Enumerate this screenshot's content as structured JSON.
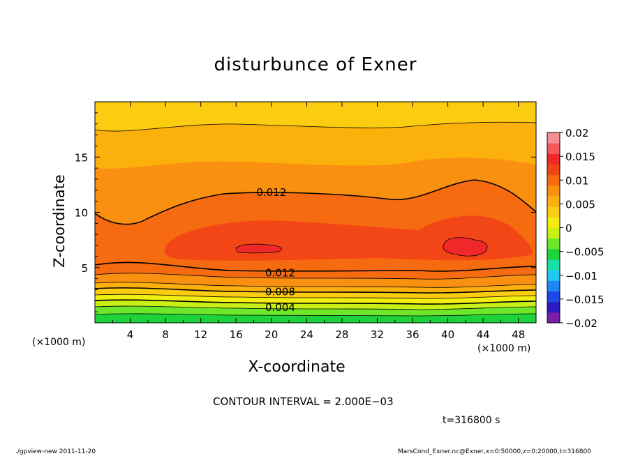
{
  "title": "disturbunce of Exner",
  "chart_data": {
    "type": "heatmap",
    "title": "disturbunce of Exner",
    "xlabel": "X-coordinate",
    "ylabel": "Z-coordinate",
    "x_unit_label": "(×1000 m)",
    "xlim": [
      0,
      50
    ],
    "ylim": [
      0,
      20
    ],
    "x_ticks": [
      4,
      8,
      12,
      16,
      20,
      24,
      28,
      32,
      36,
      40,
      44,
      48
    ],
    "y_ticks": [
      5,
      10,
      15
    ],
    "colorbar": {
      "range": [
        -0.02,
        0.02
      ],
      "tick_labels": [
        "0.02",
        "0.015",
        "0.01",
        "0.005",
        "0",
        "−0.005",
        "−0.01",
        "−0.015",
        "−0.02"
      ],
      "colors": [
        "#7a1fa8",
        "#2b1bc0",
        "#1f48e6",
        "#1e86f0",
        "#22c8f2",
        "#16e0a8",
        "#1ed23a",
        "#6ee62a",
        "#c8f015",
        "#f2ee10",
        "#fbcc10",
        "#fbb00c",
        "#f99010",
        "#f66a10",
        "#f24616",
        "#f0282a",
        "#f55a5a",
        "#f78e96"
      ]
    },
    "contour_interval_text": "CONTOUR INTERVAL = 2.000E−03",
    "contour_labels": [
      {
        "text": "0.012",
        "x": 20,
        "z": 11.8
      },
      {
        "text": "0.012",
        "x": 21,
        "z": 4.5
      },
      {
        "text": "0.008",
        "x": 21,
        "z": 2.8
      },
      {
        "text": "0.004",
        "x": 21,
        "z": 1.4
      }
    ],
    "field_description_points": [
      {
        "z": 0,
        "value": -0.001
      },
      {
        "z": 1,
        "value": 0.002
      },
      {
        "z": 2,
        "value": 0.005
      },
      {
        "z": 3,
        "value": 0.008
      },
      {
        "z": 4,
        "value": 0.011
      },
      {
        "z": 5,
        "value": 0.0125
      },
      {
        "z": 7,
        "value": 0.016
      },
      {
        "z": 10,
        "value": 0.014
      },
      {
        "z": 12,
        "value": 0.012
      },
      {
        "z": 15,
        "value": 0.011
      },
      {
        "z": 17.5,
        "value": 0.01
      },
      {
        "z": 19,
        "value": 0.009
      },
      {
        "z": 20,
        "value": 0.008
      }
    ]
  },
  "time_label": "t=316800 s",
  "footer": {
    "left": "./gpview-new   2011-11-20",
    "right": "MarsCond_Exner.nc@Exner,x=0:50000,z=0:20000,t=316800"
  }
}
